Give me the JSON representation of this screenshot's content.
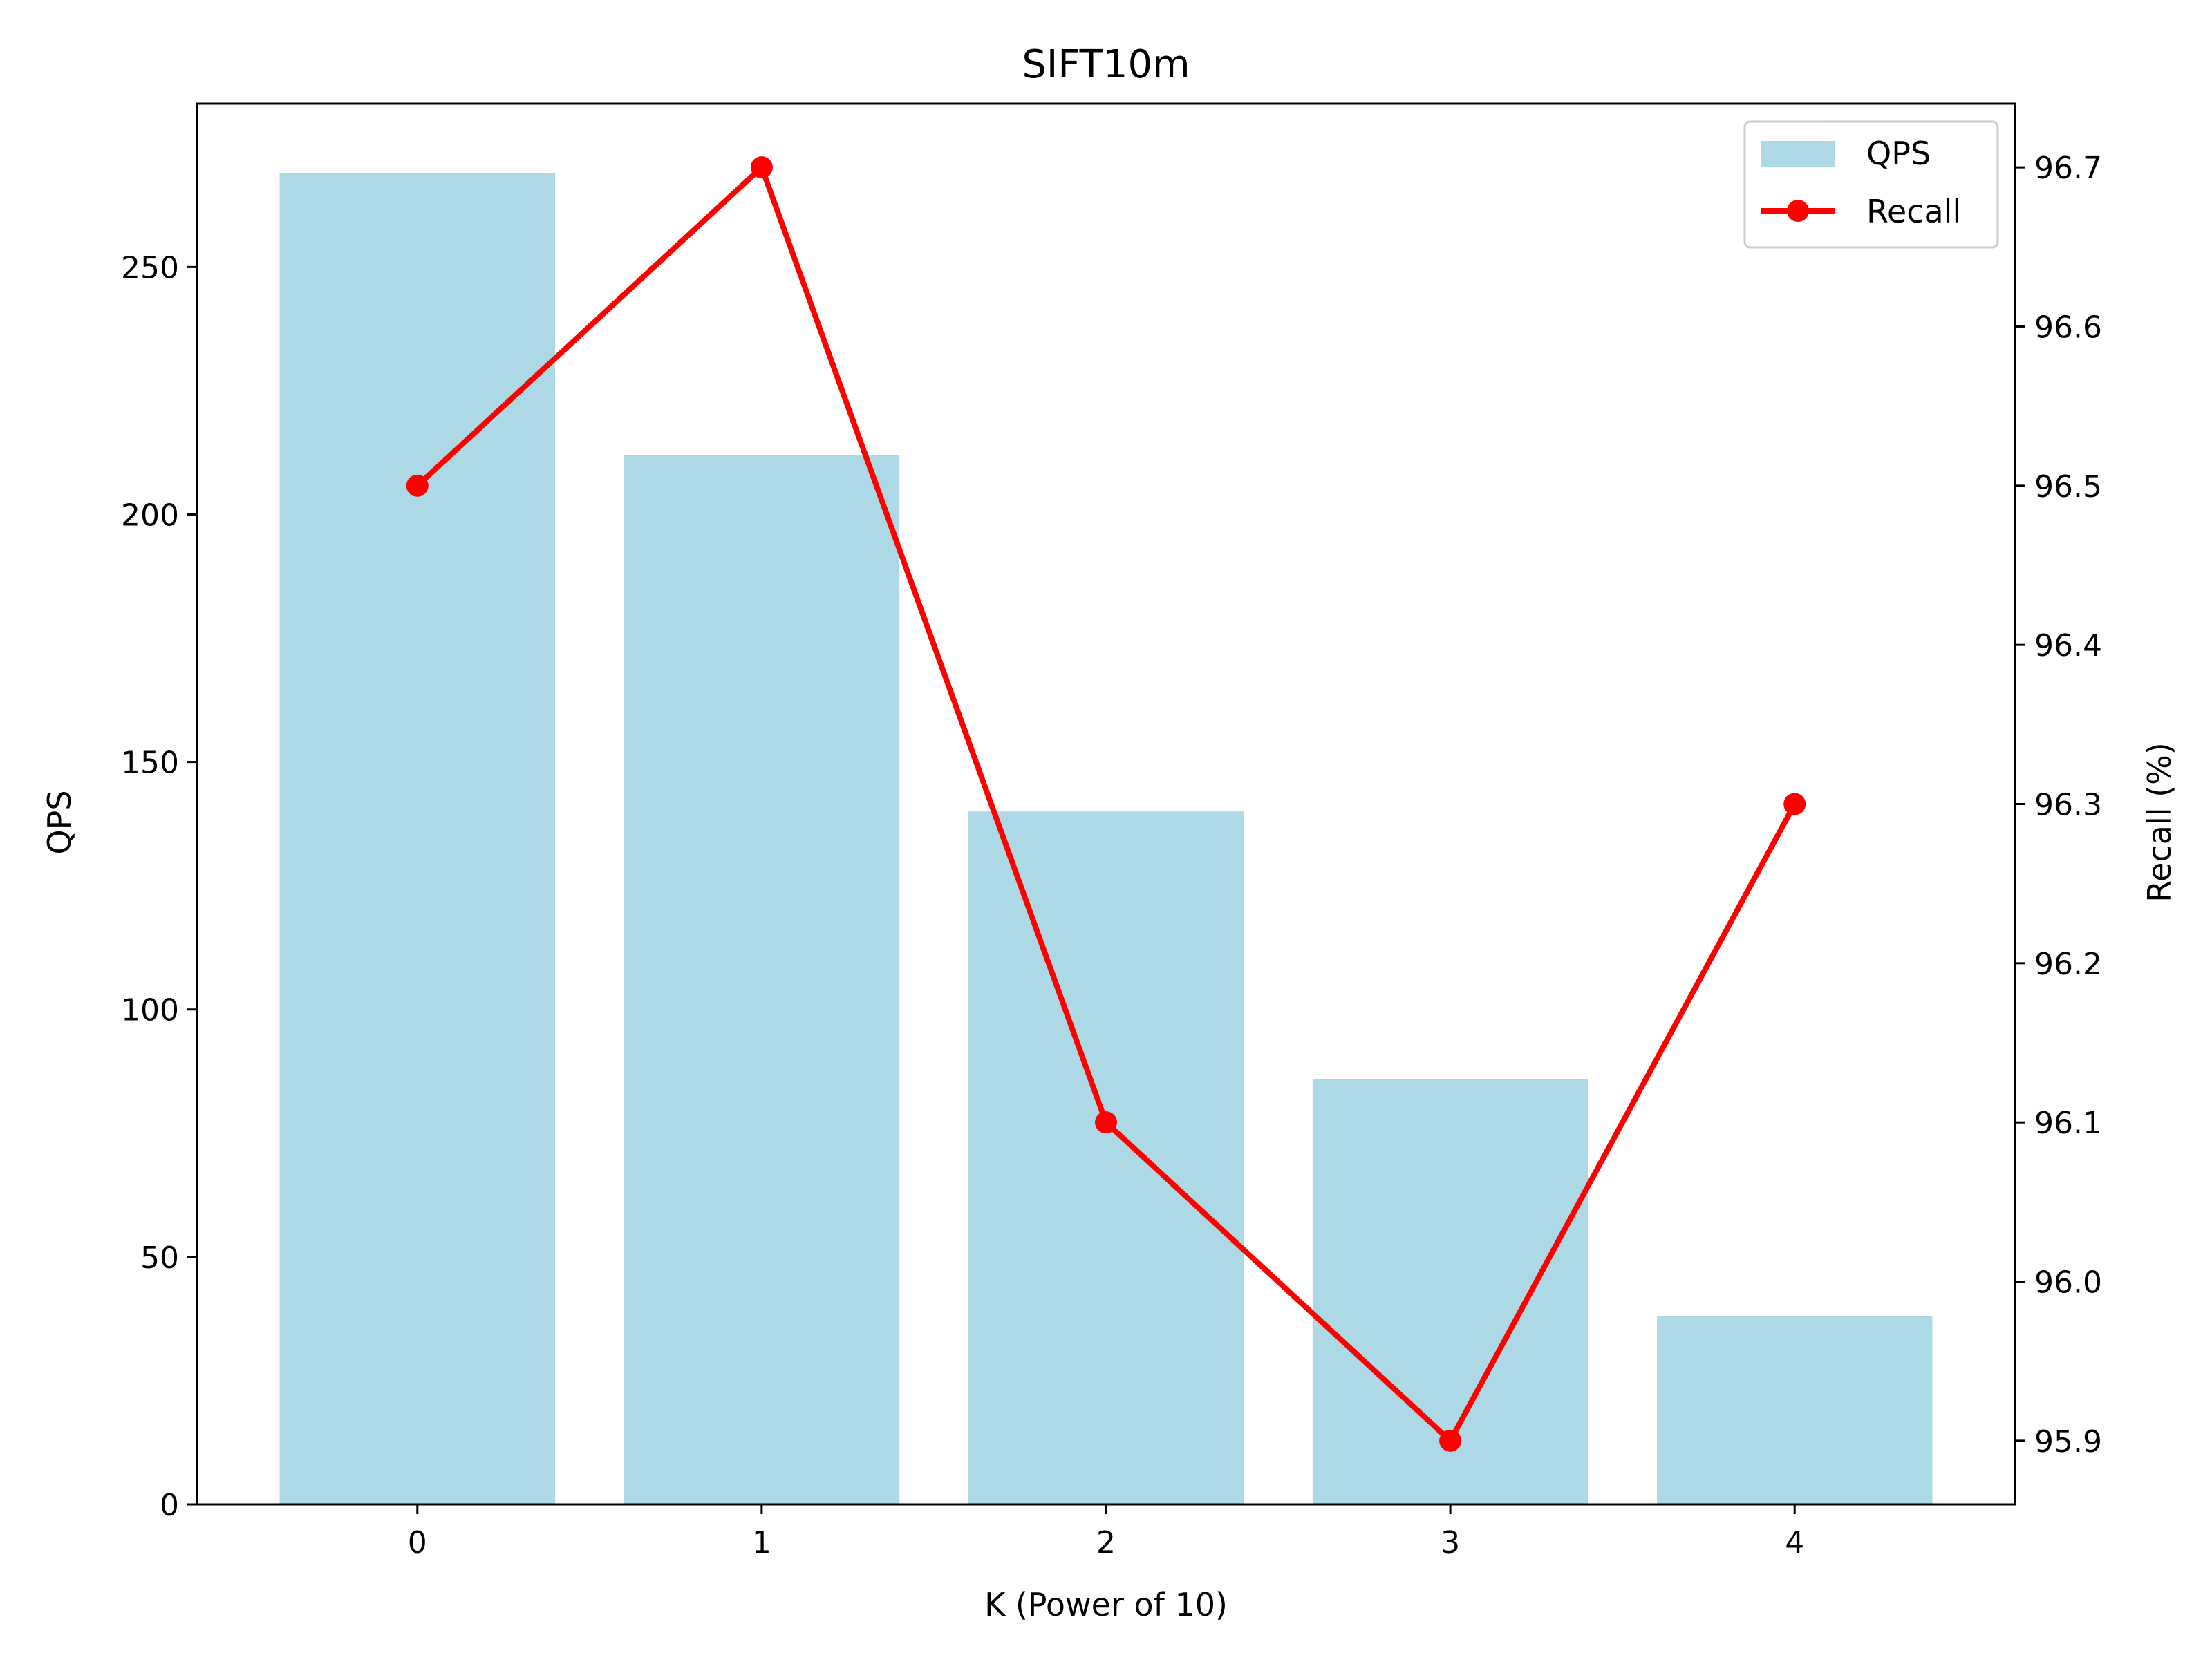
{
  "chart_data": {
    "type": "bar",
    "title": "SIFT10m",
    "xlabel": "K (Power of 10)",
    "ylabel": "QPS",
    "y2label": "Recall (%)",
    "categories": [
      "0",
      "1",
      "2",
      "3",
      "4"
    ],
    "xlim": [
      -0.64,
      4.64
    ],
    "ylim": [
      0,
      283
    ],
    "y2lim": [
      95.86,
      96.74
    ],
    "yticks": [
      0,
      50,
      100,
      150,
      200,
      250
    ],
    "y2ticks": [
      95.9,
      96.0,
      96.1,
      96.2,
      96.3,
      96.4,
      96.5,
      96.6,
      96.7
    ],
    "y2tick_labels": [
      "95.9",
      "96.0",
      "96.1",
      "96.2",
      "96.3",
      "96.4",
      "96.5",
      "96.6",
      "96.7"
    ],
    "series": [
      {
        "name": "QPS",
        "type": "bar",
        "axis": "left",
        "color": "#add8e6",
        "values": [
          269,
          212,
          140,
          86,
          38
        ]
      },
      {
        "name": "Recall",
        "type": "line",
        "axis": "right",
        "color": "#ff0000",
        "marker": "circle",
        "values": [
          96.5,
          96.7,
          96.1,
          95.9,
          96.3
        ]
      }
    ],
    "legend": {
      "placement": "top-right"
    },
    "grid": false
  }
}
